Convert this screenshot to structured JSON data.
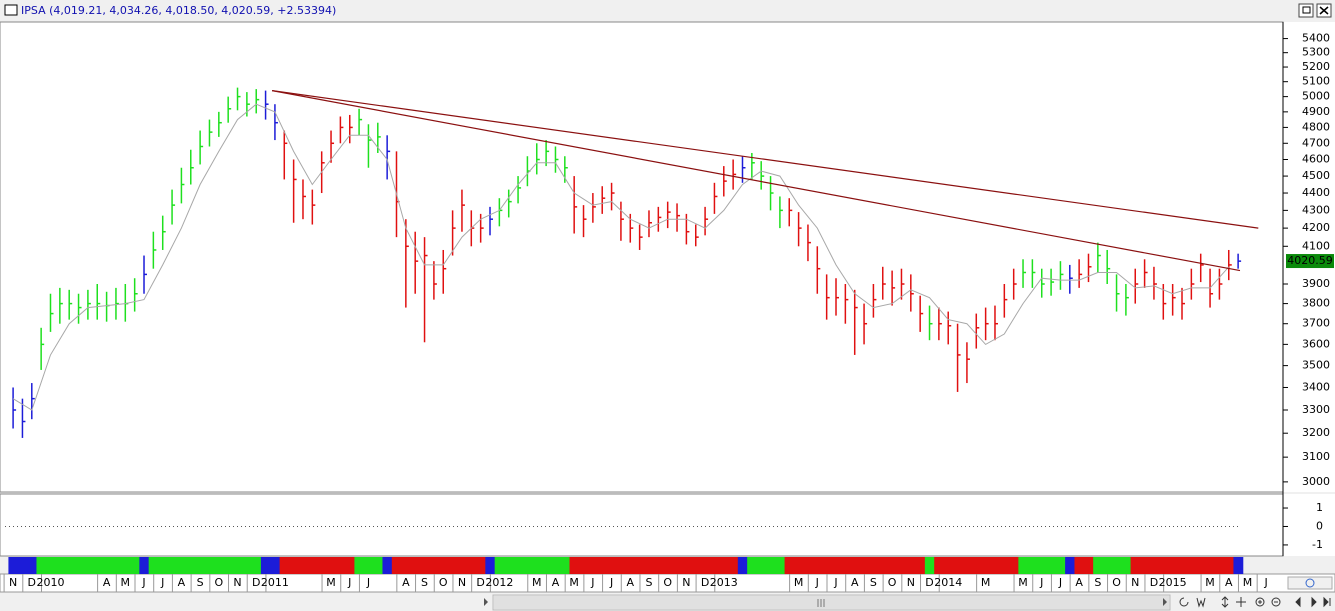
{
  "chart_data": [
    {
      "type": "ohlc",
      "title": "IPSA (4,019.21, 4,034.26, 4,018.50, 4,020.59, +2.53394)",
      "x": [
        0,
        0.5,
        1,
        1.5,
        2,
        2.5,
        3,
        3.5,
        4,
        4.5,
        5,
        5.5,
        6,
        6.5,
        7,
        7.5,
        8,
        8.5,
        9,
        9.5,
        10,
        10.5,
        11,
        11.5,
        12,
        12.5,
        13,
        13.5,
        14,
        14.5,
        15,
        15.5,
        16,
        16.5,
        17,
        17.5,
        18,
        18.5,
        19,
        19.5,
        20,
        20.5,
        21,
        21.5,
        22,
        22.5,
        23,
        23.5,
        24,
        24.5,
        25,
        25.5,
        26,
        26.5,
        27,
        27.5,
        28,
        28.5,
        29,
        29.5,
        30,
        30.5,
        31,
        31.5,
        32,
        32.5,
        33,
        33.5,
        34,
        34.5,
        35,
        35.5,
        36,
        36.5,
        37,
        37.5,
        38,
        38.5,
        39,
        39.5,
        40,
        40.5,
        41,
        41.5,
        42,
        42.5,
        43,
        43.5,
        44,
        44.5,
        45,
        45.5,
        46,
        46.5,
        47,
        47.5,
        48,
        48.5,
        49,
        49.5,
        50,
        50.5,
        51,
        51.5,
        52,
        52.5,
        53,
        53.5,
        54,
        54.5,
        55,
        55.5,
        56,
        56.5,
        57,
        57.5,
        58,
        58.5,
        59,
        59.5,
        60,
        60.5,
        61,
        61.5,
        62,
        62.5,
        63,
        63.5,
        64,
        64.5,
        65,
        65.5
      ],
      "high": [
        3400,
        3350,
        3420,
        3680,
        3850,
        3880,
        3870,
        3850,
        3870,
        3900,
        3860,
        3880,
        3900,
        3930,
        4050,
        4180,
        4270,
        4420,
        4550,
        4660,
        4780,
        4850,
        4900,
        5000,
        5060,
        5030,
        5050,
        5040,
        4950,
        4780,
        4600,
        4480,
        4420,
        4650,
        4780,
        4870,
        4880,
        4920,
        4820,
        4830,
        4750,
        4650,
        4250,
        4180,
        4150,
        4020,
        4080,
        4300,
        4420,
        4300,
        4280,
        4320,
        4370,
        4420,
        4500,
        4620,
        4700,
        4720,
        4680,
        4620,
        4500,
        4330,
        4400,
        4440,
        4460,
        4350,
        4280,
        4220,
        4300,
        4320,
        4350,
        4340,
        4280,
        4220,
        4320,
        4460,
        4560,
        4600,
        4620,
        4640,
        4590,
        4500,
        4380,
        4370,
        4290,
        4220,
        4100,
        3950,
        3930,
        3900,
        3870,
        3800,
        3900,
        3990,
        3970,
        3980,
        3950,
        3840,
        3790,
        3780,
        3760,
        3700,
        3610,
        3750,
        3780,
        3790,
        3900,
        3980,
        4030,
        4030,
        3980,
        3980,
        4020,
        4000,
        4030,
        4060,
        4120,
        4080,
        3950,
        3900,
        3980,
        4030,
        3990,
        3900,
        3900,
        3880,
        3980,
        4060,
        3980,
        3980,
        4080,
        4060
      ],
      "low": [
        3220,
        3180,
        3260,
        3480,
        3660,
        3700,
        3720,
        3700,
        3720,
        3720,
        3710,
        3720,
        3710,
        3760,
        3850,
        3980,
        4080,
        4220,
        4340,
        4450,
        4570,
        4680,
        4740,
        4830,
        4910,
        4870,
        4890,
        4850,
        4720,
        4480,
        4230,
        4250,
        4220,
        4400,
        4580,
        4700,
        4700,
        4750,
        4550,
        4640,
        4480,
        4150,
        3780,
        3850,
        3610,
        3820,
        3850,
        4050,
        4180,
        4100,
        4120,
        4160,
        4210,
        4260,
        4340,
        4440,
        4510,
        4560,
        4520,
        4460,
        4170,
        4150,
        4230,
        4280,
        4300,
        4130,
        4120,
        4080,
        4150,
        4180,
        4200,
        4180,
        4110,
        4100,
        4160,
        4280,
        4380,
        4420,
        4460,
        4480,
        4420,
        4300,
        4200,
        4210,
        4100,
        4020,
        3850,
        3720,
        3740,
        3700,
        3550,
        3600,
        3730,
        3820,
        3790,
        3820,
        3760,
        3660,
        3620,
        3620,
        3600,
        3380,
        3420,
        3580,
        3620,
        3620,
        3730,
        3820,
        3880,
        3880,
        3830,
        3840,
        3870,
        3850,
        3880,
        3910,
        3960,
        3900,
        3760,
        3740,
        3800,
        3880,
        3820,
        3720,
        3740,
        3720,
        3820,
        3910,
        3780,
        3820,
        3920,
        3980
      ],
      "close": [
        3300,
        3250,
        3350,
        3600,
        3750,
        3800,
        3800,
        3780,
        3800,
        3800,
        3790,
        3800,
        3800,
        3850,
        3950,
        4080,
        4180,
        4330,
        4450,
        4550,
        4680,
        4770,
        4830,
        4920,
        5000,
        4950,
        4980,
        4950,
        4830,
        4700,
        4480,
        4380,
        4330,
        4580,
        4700,
        4800,
        4800,
        4850,
        4720,
        4740,
        4650,
        4350,
        4100,
        4020,
        4050,
        3900,
        3980,
        4200,
        4330,
        4200,
        4200,
        4250,
        4300,
        4350,
        4430,
        4530,
        4600,
        4650,
        4600,
        4550,
        4320,
        4250,
        4320,
        4370,
        4400,
        4250,
        4200,
        4150,
        4230,
        4260,
        4290,
        4270,
        4180,
        4150,
        4250,
        4380,
        4470,
        4510,
        4550,
        4580,
        4500,
        4400,
        4300,
        4300,
        4200,
        4120,
        3980,
        3830,
        3830,
        3820,
        3780,
        3700,
        3820,
        3900,
        3880,
        3900,
        3850,
        3750,
        3700,
        3700,
        3690,
        3550,
        3530,
        3680,
        3700,
        3700,
        3820,
        3900,
        3960,
        3960,
        3900,
        3910,
        3950,
        3930,
        3950,
        3990,
        4050,
        3980,
        3850,
        3830,
        3900,
        3960,
        3900,
        3800,
        3830,
        3800,
        3900,
        4000,
        3850,
        3900,
        4000,
        4020
      ],
      "states": [
        "flat",
        "flat",
        "flat",
        "up",
        "up",
        "up",
        "up",
        "up",
        "up",
        "up",
        "up",
        "up",
        "up",
        "up",
        "flat",
        "up",
        "up",
        "up",
        "up",
        "up",
        "up",
        "up",
        "up",
        "up",
        "up",
        "up",
        "up",
        "flat",
        "flat",
        "down",
        "down",
        "down",
        "down",
        "down",
        "down",
        "down",
        "down",
        "up",
        "up",
        "up",
        "flat",
        "down",
        "down",
        "down",
        "down",
        "down",
        "down",
        "down",
        "down",
        "down",
        "down",
        "flat",
        "up",
        "up",
        "up",
        "up",
        "up",
        "up",
        "up",
        "up",
        "down",
        "down",
        "down",
        "down",
        "down",
        "down",
        "down",
        "down",
        "down",
        "down",
        "down",
        "down",
        "down",
        "down",
        "down",
        "down",
        "down",
        "down",
        "flat",
        "up",
        "up",
        "up",
        "up",
        "down",
        "down",
        "down",
        "down",
        "down",
        "down",
        "down",
        "down",
        "down",
        "down",
        "down",
        "down",
        "down",
        "down",
        "down",
        "up",
        "down",
        "down",
        "down",
        "down",
        "down",
        "down",
        "down",
        "down",
        "down",
        "up",
        "up",
        "up",
        "up",
        "up",
        "flat",
        "down",
        "down",
        "up",
        "up",
        "up",
        "up",
        "down",
        "down",
        "down",
        "down",
        "down",
        "down",
        "down",
        "down",
        "down",
        "down",
        "down",
        "flat"
      ],
      "state_colors": {
        "up": "#1ee01e",
        "down": "#e01010",
        "flat": "#1c1cd8"
      },
      "ma": {
        "x": [
          0,
          1,
          2,
          3,
          4,
          5,
          6,
          7,
          8,
          9,
          10,
          11,
          12,
          13,
          14,
          15,
          16,
          17,
          18,
          19,
          20,
          21,
          22,
          23,
          24,
          25,
          26,
          27,
          28,
          29,
          30,
          31,
          32,
          33,
          34,
          35,
          36,
          37,
          38,
          39,
          40,
          41,
          42,
          43,
          44,
          45,
          46,
          47,
          48,
          49,
          50,
          51,
          52,
          53,
          54,
          55,
          56,
          57,
          58,
          59,
          60,
          61,
          62,
          63,
          64,
          65
        ],
        "values": [
          3350,
          3300,
          3550,
          3700,
          3780,
          3790,
          3800,
          3820,
          4000,
          4200,
          4450,
          4650,
          4850,
          4950,
          4900,
          4650,
          4450,
          4600,
          4750,
          4750,
          4600,
          4200,
          4000,
          4000,
          4150,
          4250,
          4300,
          4450,
          4580,
          4580,
          4400,
          4330,
          4350,
          4250,
          4200,
          4250,
          4250,
          4200,
          4300,
          4450,
          4530,
          4500,
          4330,
          4200,
          4000,
          3850,
          3780,
          3800,
          3870,
          3830,
          3720,
          3700,
          3600,
          3650,
          3800,
          3930,
          3920,
          3920,
          3960,
          3960,
          3880,
          3890,
          3850,
          3880,
          3880,
          3990
        ],
        "color": "#a8a8a8"
      },
      "trendlines": [
        {
          "x": [
            13.85,
            66.58
          ],
          "y": [
            5040,
            4200
          ]
        },
        {
          "x": [
            13.85,
            65.6
          ],
          "y": [
            5040,
            3970
          ]
        }
      ],
      "trendline_color": "#8b1010",
      "last_price": 4020.59,
      "last_color": "#0a8a0a",
      "log_y": true,
      "ylim": [
        2960,
        5520
      ],
      "yticks": [
        3000,
        3100,
        3200,
        3300,
        3400,
        3500,
        3600,
        3700,
        3800,
        3900,
        4100,
        4200,
        4300,
        4400,
        4500,
        4600,
        4700,
        4800,
        4900,
        5000,
        5100,
        5200,
        5300,
        5400
      ],
      "xlim": [
        -0.7,
        67.9
      ],
      "xticks": [
        {
          "value": 0,
          "label": "N"
        },
        {
          "value": 1,
          "label": "D"
        },
        {
          "value": 2,
          "label": "2010"
        },
        {
          "value": 5,
          "label": "A"
        },
        {
          "value": 6,
          "label": "M"
        },
        {
          "value": 7,
          "label": "J"
        },
        {
          "value": 8,
          "label": "J"
        },
        {
          "value": 9,
          "label": "A"
        },
        {
          "value": 10,
          "label": "S"
        },
        {
          "value": 11,
          "label": "O"
        },
        {
          "value": 12,
          "label": "N"
        },
        {
          "value": 13,
          "label": "D"
        },
        {
          "value": 14,
          "label": "2011"
        },
        {
          "value": 17,
          "label": "M"
        },
        {
          "value": 18,
          "label": "J"
        },
        {
          "value": 19,
          "label": "J"
        },
        {
          "value": 21,
          "label": "A"
        },
        {
          "value": 22,
          "label": "S"
        },
        {
          "value": 23,
          "label": "O"
        },
        {
          "value": 24,
          "label": "N"
        },
        {
          "value": 25,
          "label": "D"
        },
        {
          "value": 26,
          "label": "2012"
        },
        {
          "value": 28,
          "label": "M"
        },
        {
          "value": 29,
          "label": "A"
        },
        {
          "value": 30,
          "label": "M"
        },
        {
          "value": 31,
          "label": "J"
        },
        {
          "value": 32,
          "label": "J"
        },
        {
          "value": 33,
          "label": "A"
        },
        {
          "value": 34,
          "label": "S"
        },
        {
          "value": 35,
          "label": "O"
        },
        {
          "value": 36,
          "label": "N"
        },
        {
          "value": 37,
          "label": "D"
        },
        {
          "value": 38,
          "label": "2013"
        },
        {
          "value": 42,
          "label": "M"
        },
        {
          "value": 43,
          "label": "J"
        },
        {
          "value": 44,
          "label": "J"
        },
        {
          "value": 45,
          "label": "A"
        },
        {
          "value": 46,
          "label": "S"
        },
        {
          "value": 47,
          "label": "O"
        },
        {
          "value": 48,
          "label": "N"
        },
        {
          "value": 49,
          "label": "D"
        },
        {
          "value": 50,
          "label": "2014"
        },
        {
          "value": 52,
          "label": "M"
        },
        {
          "value": 54,
          "label": "M"
        },
        {
          "value": 55,
          "label": "J"
        },
        {
          "value": 56,
          "label": "J"
        },
        {
          "value": 57,
          "label": "A"
        },
        {
          "value": 58,
          "label": "S"
        },
        {
          "value": 59,
          "label": "O"
        },
        {
          "value": 60,
          "label": "N"
        },
        {
          "value": 61,
          "label": "D"
        },
        {
          "value": 62,
          "label": "2015"
        },
        {
          "value": 64,
          "label": "M"
        },
        {
          "value": 65,
          "label": "A"
        },
        {
          "value": 66,
          "label": "M"
        },
        {
          "value": 67,
          "label": "J"
        }
      ]
    },
    {
      "type": "line",
      "ylim": [
        -1.6,
        1.76
      ],
      "yticks": [
        1,
        0,
        -1
      ],
      "hline": 0
    }
  ]
}
